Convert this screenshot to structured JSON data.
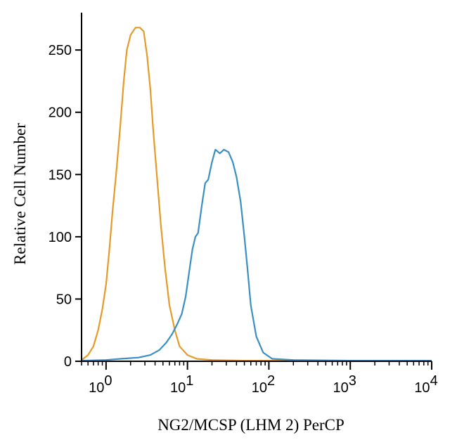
{
  "chart_data": {
    "type": "line",
    "title": "",
    "xlabel": "NG2/MCSP (LHM 2) PerCP",
    "ylabel": "Relative Cell Number",
    "xscale": "log",
    "xlim": [
      0.5,
      10000
    ],
    "ylim": [
      0,
      280
    ],
    "y_ticks": [
      0,
      50,
      100,
      150,
      200,
      250
    ],
    "x_ticks": [
      1,
      10,
      100,
      1000,
      10000
    ],
    "x_tick_labels": [
      {
        "base": "10",
        "exp": "0"
      },
      {
        "base": "10",
        "exp": "1"
      },
      {
        "base": "10",
        "exp": "2"
      },
      {
        "base": "10",
        "exp": "3"
      },
      {
        "base": "10",
        "exp": "4"
      }
    ],
    "grid": false,
    "legend": "none",
    "series": [
      {
        "color": "#e69a28",
        "points": [
          [
            0.5,
            1
          ],
          [
            0.6,
            5
          ],
          [
            0.7,
            12
          ],
          [
            0.8,
            25
          ],
          [
            0.9,
            42
          ],
          [
            1.0,
            62
          ],
          [
            1.1,
            90
          ],
          [
            1.2,
            120
          ],
          [
            1.35,
            155
          ],
          [
            1.5,
            190
          ],
          [
            1.65,
            225
          ],
          [
            1.8,
            250
          ],
          [
            2.0,
            262
          ],
          [
            2.3,
            268
          ],
          [
            2.6,
            268
          ],
          [
            2.9,
            265
          ],
          [
            3.2,
            245
          ],
          [
            3.5,
            218
          ],
          [
            3.8,
            185
          ],
          [
            4.2,
            150
          ],
          [
            4.7,
            110
          ],
          [
            5.3,
            75
          ],
          [
            6.0,
            45
          ],
          [
            7.0,
            25
          ],
          [
            8.0,
            12
          ],
          [
            10,
            5
          ],
          [
            13,
            2
          ],
          [
            20,
            1
          ],
          [
            50,
            0.5
          ],
          [
            200,
            0.5
          ],
          [
            1000,
            0.5
          ],
          [
            10000,
            0.5
          ]
        ]
      },
      {
        "color": "#3a8fc3",
        "points": [
          [
            0.5,
            0.5
          ],
          [
            1.0,
            1
          ],
          [
            1.5,
            2
          ],
          [
            2.5,
            3
          ],
          [
            3.5,
            5
          ],
          [
            4.5,
            9
          ],
          [
            5.5,
            15
          ],
          [
            6.5,
            22
          ],
          [
            7.5,
            30
          ],
          [
            8.5,
            38
          ],
          [
            9.5,
            52
          ],
          [
            10.5,
            72
          ],
          [
            11.5,
            90
          ],
          [
            12.5,
            100
          ],
          [
            13.5,
            103
          ],
          [
            15,
            125
          ],
          [
            16.5,
            143
          ],
          [
            18,
            146
          ],
          [
            20,
            160
          ],
          [
            22,
            170
          ],
          [
            25,
            167
          ],
          [
            28,
            170
          ],
          [
            32,
            168
          ],
          [
            36,
            160
          ],
          [
            40,
            148
          ],
          [
            45,
            128
          ],
          [
            50,
            100
          ],
          [
            55,
            72
          ],
          [
            60,
            45
          ],
          [
            70,
            20
          ],
          [
            85,
            7
          ],
          [
            110,
            2
          ],
          [
            200,
            1
          ],
          [
            1000,
            0.5
          ],
          [
            10000,
            0.5
          ]
        ]
      }
    ]
  }
}
